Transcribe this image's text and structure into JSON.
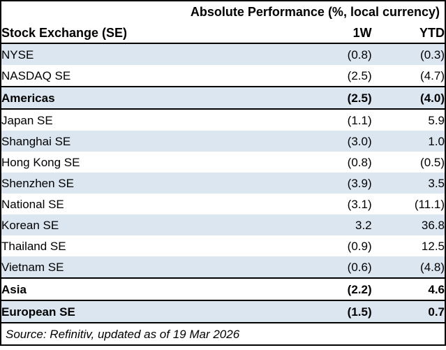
{
  "table": {
    "title": "Absolute Performance (%, local currency)",
    "columns": {
      "label": "Stock Exchange (SE)",
      "col_1w": "1W",
      "col_ytd": "YTD"
    },
    "rows": [
      {
        "label": "NYSE",
        "w1": "(0.8)",
        "ytd": "(0.3)",
        "bold": false,
        "shaded": true,
        "border_top": false,
        "border_bottom": false
      },
      {
        "label": "NASDAQ SE",
        "w1": "(2.5)",
        "ytd": "(4.7)",
        "bold": false,
        "shaded": false,
        "border_top": false,
        "border_bottom": false
      },
      {
        "label": "Americas",
        "w1": "(2.5)",
        "ytd": "(4.0)",
        "bold": true,
        "shaded": true,
        "border_top": true,
        "border_bottom": true
      },
      {
        "label": "Japan SE",
        "w1": "(1.1)",
        "ytd": "5.9",
        "bold": false,
        "shaded": false,
        "border_top": false,
        "border_bottom": false
      },
      {
        "label": "Shanghai SE",
        "w1": "(3.0)",
        "ytd": "1.0",
        "bold": false,
        "shaded": true,
        "border_top": false,
        "border_bottom": false
      },
      {
        "label": "Hong Kong SE",
        "w1": "(0.8)",
        "ytd": "(0.5)",
        "bold": false,
        "shaded": false,
        "border_top": false,
        "border_bottom": false
      },
      {
        "label": "Shenzhen SE",
        "w1": "(3.9)",
        "ytd": "3.5",
        "bold": false,
        "shaded": true,
        "border_top": false,
        "border_bottom": false
      },
      {
        "label": "National SE",
        "w1": "(3.1)",
        "ytd": "(11.1)",
        "bold": false,
        "shaded": false,
        "border_top": false,
        "border_bottom": false
      },
      {
        "label": "Korean SE",
        "w1": "3.2",
        "ytd": "36.8",
        "bold": false,
        "shaded": true,
        "border_top": false,
        "border_bottom": false
      },
      {
        "label": "Thailand SE",
        "w1": "(0.9)",
        "ytd": "12.5",
        "bold": false,
        "shaded": false,
        "border_top": false,
        "border_bottom": false
      },
      {
        "label": "Vietnam SE",
        "w1": "(0.6)",
        "ytd": "(4.8)",
        "bold": false,
        "shaded": true,
        "border_top": false,
        "border_bottom": false
      },
      {
        "label": "Asia",
        "w1": "(2.2)",
        "ytd": "4.6",
        "bold": true,
        "shaded": false,
        "border_top": true,
        "border_bottom": true
      },
      {
        "label": "European SE",
        "w1": "(1.5)",
        "ytd": "0.7",
        "bold": true,
        "shaded": true,
        "border_top": false,
        "border_bottom": true
      }
    ],
    "source": "Source: Refinitiv, updated as of 19 Mar 2026",
    "colors": {
      "row_shade": "#DCE6F1",
      "border": "#000000",
      "text": "#000000",
      "background": "#FFFFFF"
    }
  }
}
